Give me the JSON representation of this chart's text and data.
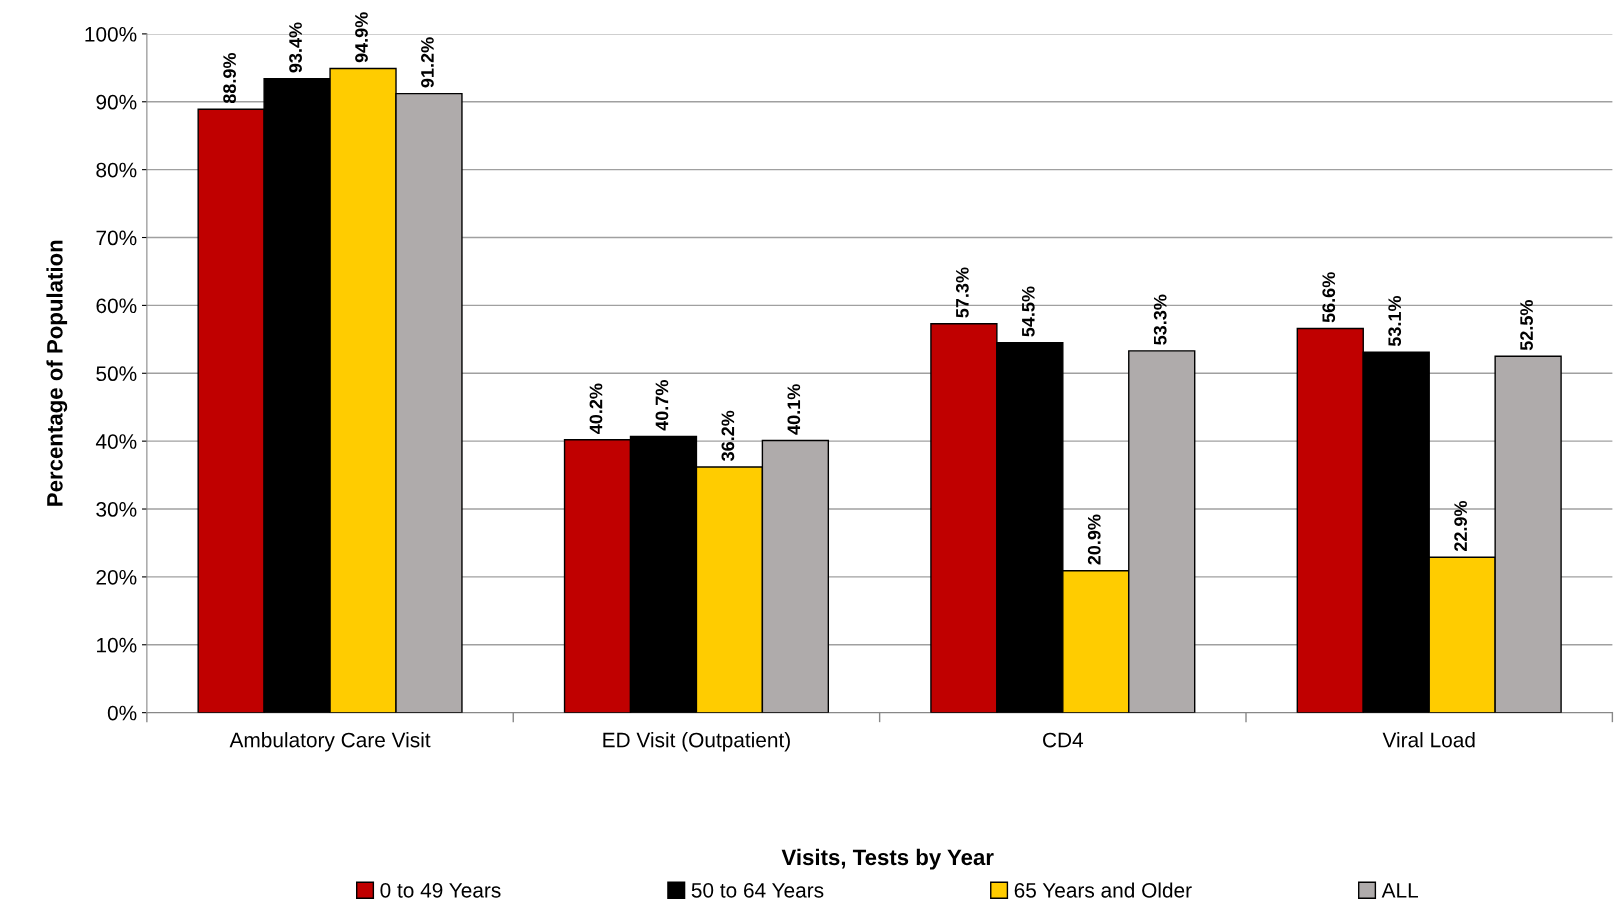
{
  "chart_data": {
    "type": "bar",
    "xlabel": "Visits, Tests by Year",
    "ylabel": "Percentage of Population",
    "categories": [
      "Ambulatory Care Visit",
      "ED Visit (Outpatient)",
      "CD4",
      "Viral Load"
    ],
    "series": [
      {
        "name": "0 to 49 Years",
        "color": "#c00000",
        "values": [
          88.9,
          40.2,
          57.3,
          56.6
        ],
        "value_labels": [
          "88.9%",
          "40.2%",
          "57.3%",
          "56.6%"
        ]
      },
      {
        "name": "50 to 64 Years",
        "color": "#000000",
        "values": [
          93.4,
          40.7,
          54.5,
          53.1
        ],
        "value_labels": [
          "93.4%",
          "40.7%",
          "54.5%",
          "53.1%"
        ]
      },
      {
        "name": "65 Years and Older",
        "color": "#ffcc00",
        "values": [
          94.9,
          36.2,
          20.9,
          22.9
        ],
        "value_labels": [
          "94.9%",
          "36.2%",
          "20.9%",
          "22.9%"
        ]
      },
      {
        "name": "ALL",
        "color": "#afabab",
        "values": [
          91.2,
          40.1,
          53.3,
          52.5
        ],
        "value_labels": [
          "91.2%",
          "40.1%",
          "53.3%",
          "52.5%"
        ]
      }
    ],
    "ylim": [
      0,
      100
    ],
    "yticks": [
      {
        "value": 0,
        "label": "0%"
      },
      {
        "value": 10,
        "label": "10%"
      },
      {
        "value": 20,
        "label": "20%"
      },
      {
        "value": 30,
        "label": "30%"
      },
      {
        "value": 40,
        "label": "40%"
      },
      {
        "value": 50,
        "label": "50%"
      },
      {
        "value": 60,
        "label": "60%"
      },
      {
        "value": 70,
        "label": "70%"
      },
      {
        "value": 80,
        "label": "80%"
      },
      {
        "value": 90,
        "label": "90%"
      },
      {
        "value": 100,
        "label": "100%"
      }
    ],
    "grid": "y",
    "legend": "bottom"
  }
}
